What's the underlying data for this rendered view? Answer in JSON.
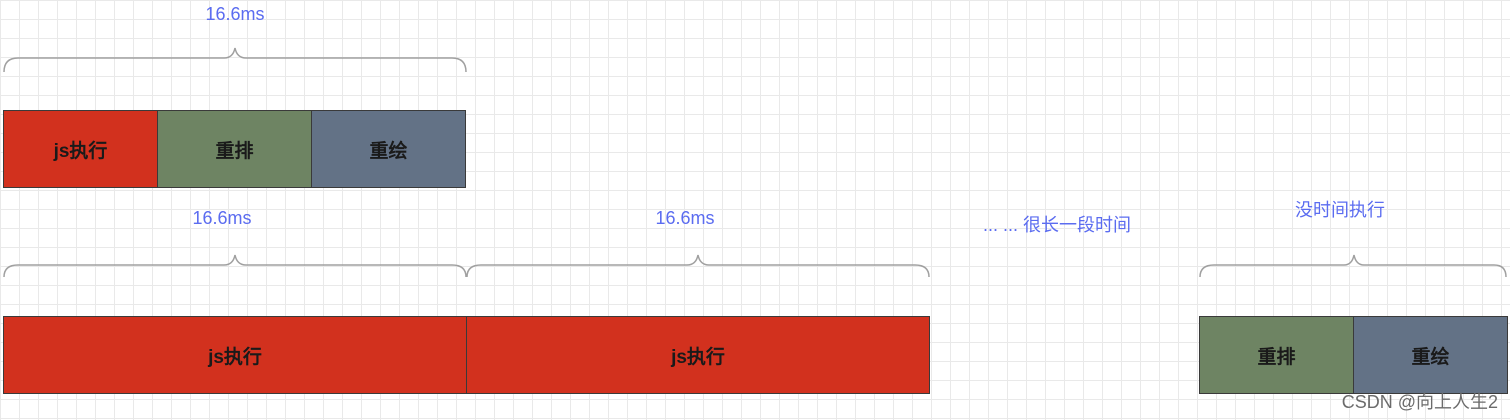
{
  "timeline": {
    "frame_duration": "16.6ms",
    "long_gap_text": "... ... 很长一段时间",
    "no_time_text": "没时间执行"
  },
  "blocks": {
    "js": "js执行",
    "reflow": "重排",
    "repaint": "重绘"
  },
  "colors": {
    "js": "#d2311e",
    "reflow": "#6e8463",
    "repaint": "#637286",
    "label": "#5b6cf0",
    "brace": "#a0a0a0"
  },
  "watermark": "CSDN @向上人生2"
}
